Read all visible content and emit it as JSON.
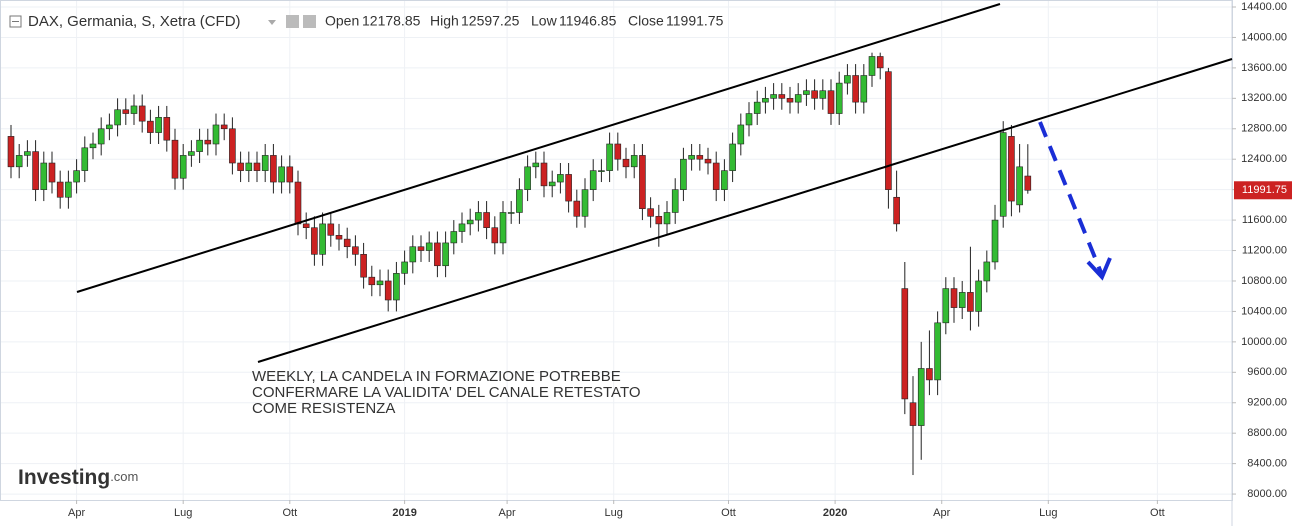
{
  "chart_data": {
    "type": "candlestick",
    "title": "DAX, Germania, S, Xetra (CFD)",
    "ohlc_labels": [
      "Open",
      "High",
      "Low",
      "Close"
    ],
    "annotation": [
      "WEEKLY, LA CANDELA IN FORMAZIONE POTREBBE",
      "CONFERMARE LA VALIDITA' DEL CANALE RETESTATO",
      "COME RESISTENZA"
    ],
    "branding": [
      "Investing",
      ".com"
    ],
    "up_color": "#33bb33",
    "down_color": "#cc2222",
    "grid": true,
    "open": [
      12700,
      12300,
      12450,
      12500,
      12000,
      12350,
      12100,
      11900,
      12100,
      12250,
      12550,
      12600,
      12800,
      12850,
      13050,
      13000,
      13100,
      12900,
      12750,
      12950,
      12650,
      12150,
      12450,
      12500,
      12650,
      12600,
      12850,
      12800,
      12350,
      12250,
      12350,
      12250,
      12450,
      12100,
      12300,
      12100,
      11550,
      11500,
      11150,
      11550,
      11400,
      11350,
      11250,
      11150,
      10850,
      10750,
      10800,
      10550,
      10900,
      11050,
      11250,
      11200,
      11300,
      11000,
      11300,
      11450,
      11550,
      11600,
      11700,
      11500,
      11300,
      11700,
      11700,
      12000,
      12300,
      12350,
      12050,
      12100,
      12200,
      11850,
      11650,
      12000,
      12250,
      12250,
      12600,
      12400,
      12300,
      12450,
      11750,
      11650,
      11550,
      11700,
      12000,
      12400,
      12450,
      12400,
      12350,
      12000,
      12250,
      12600,
      12850,
      13000,
      13150,
      13200,
      13250,
      13200,
      13150,
      13250,
      13300,
      13200,
      13300,
      13000,
      13400,
      13500,
      13150,
      13500,
      13750,
      13550,
      11900,
      10700,
      9200,
      8900,
      9650,
      9500,
      10250,
      10700,
      10450,
      10650,
      10400,
      10800,
      11050,
      11650,
      12700,
      11800,
      12178.85
    ],
    "high": [
      12850,
      12600,
      12650,
      12650,
      12500,
      12500,
      12250,
      12250,
      12400,
      12700,
      12750,
      12950,
      13000,
      13200,
      13200,
      13250,
      13250,
      13050,
      13100,
      13100,
      12800,
      12600,
      12650,
      12800,
      12800,
      13000,
      13000,
      12950,
      12500,
      12500,
      12500,
      12600,
      12600,
      12450,
      12450,
      12250,
      11700,
      11650,
      11700,
      11700,
      11550,
      11500,
      11400,
      11300,
      11000,
      10950,
      10950,
      11050,
      11200,
      11400,
      11400,
      11450,
      11450,
      11450,
      11600,
      11700,
      11750,
      11850,
      11850,
      11650,
      11850,
      11850,
      12150,
      12450,
      12500,
      12500,
      12250,
      12350,
      12350,
      12000,
      12150,
      12400,
      12400,
      12750,
      12750,
      12550,
      12600,
      12600,
      11900,
      11800,
      11850,
      12150,
      12550,
      12600,
      12600,
      12550,
      12500,
      12400,
      12750,
      13000,
      13150,
      13300,
      13350,
      13400,
      13400,
      13350,
      13400,
      13450,
      13450,
      13450,
      13450,
      13550,
      13650,
      13650,
      13650,
      13800,
      13800,
      13600,
      12250,
      11050,
      9550,
      10000,
      10150,
      10400,
      10850,
      10850,
      10800,
      11250,
      10950,
      11200,
      11800,
      12900,
      12850,
      12600,
      12597.25
    ],
    "low": [
      12150,
      12150,
      12300,
      11850,
      11850,
      11950,
      11750,
      11750,
      11950,
      12100,
      12400,
      12450,
      12650,
      12700,
      12850,
      12850,
      12750,
      12600,
      12600,
      12500,
      12000,
      12000,
      12300,
      12350,
      12450,
      12450,
      12650,
      12200,
      12100,
      12100,
      12100,
      12100,
      11950,
      11950,
      11950,
      11400,
      11350,
      11000,
      11000,
      11250,
      11200,
      11100,
      11000,
      10700,
      10600,
      10600,
      10400,
      10400,
      10750,
      10900,
      11050,
      11050,
      10850,
      10850,
      11150,
      11300,
      11400,
      11450,
      11350,
      11150,
      11150,
      11550,
      11550,
      11850,
      12150,
      11900,
      11900,
      11950,
      11700,
      11500,
      11500,
      11850,
      12100,
      12100,
      12250,
      12150,
      12150,
      11600,
      11500,
      11250,
      11400,
      11550,
      11850,
      12250,
      12250,
      12200,
      11850,
      11850,
      12100,
      12450,
      12700,
      12850,
      13000,
      13050,
      13050,
      13000,
      13000,
      13100,
      13050,
      13050,
      12850,
      12850,
      13250,
      13000,
      13000,
      13350,
      13450,
      11750,
      11450,
      9050,
      8250,
      8450,
      9300,
      9300,
      10100,
      10250,
      10300,
      10150,
      10200,
      10650,
      10950,
      11500,
      11650,
      11700,
      11946.85
    ],
    "close": [
      12300,
      12450,
      12500,
      12000,
      12350,
      12100,
      11900,
      12100,
      12250,
      12550,
      12600,
      12800,
      12850,
      13050,
      13000,
      13100,
      12900,
      12750,
      12950,
      12650,
      12150,
      12450,
      12500,
      12650,
      12600,
      12850,
      12800,
      12350,
      12250,
      12350,
      12250,
      12450,
      12100,
      12300,
      12100,
      11550,
      11500,
      11150,
      11550,
      11400,
      11350,
      11250,
      11150,
      10850,
      10750,
      10800,
      10550,
      10900,
      11050,
      11250,
      11200,
      11300,
      11000,
      11300,
      11450,
      11550,
      11600,
      11700,
      11500,
      11300,
      11700,
      11700,
      12000,
      12300,
      12350,
      12050,
      12100,
      12200,
      11850,
      11650,
      12000,
      12250,
      12250,
      12600,
      12400,
      12300,
      12450,
      11750,
      11650,
      11550,
      11700,
      12000,
      12400,
      12450,
      12400,
      12350,
      12000,
      12250,
      12600,
      12850,
      13000,
      13150,
      13200,
      13250,
      13200,
      13150,
      13250,
      13300,
      13200,
      13300,
      13000,
      13400,
      13500,
      13150,
      13500,
      13750,
      13600,
      12000,
      11550,
      9250,
      8900,
      9650,
      9500,
      10250,
      10700,
      10450,
      10650,
      10400,
      10800,
      11050,
      11600,
      12750,
      11850,
      12300,
      11991.75
    ],
    "ylim": [
      7922,
      14492
    ],
    "yticks": [
      {
        "value": 8000,
        "label": "8000.00"
      },
      {
        "value": 8400,
        "label": "8400.00"
      },
      {
        "value": 8800,
        "label": "8800.00"
      },
      {
        "value": 9200,
        "label": "9200.00"
      },
      {
        "value": 9600,
        "label": "9600.00"
      },
      {
        "value": 10000,
        "label": "10000.00"
      },
      {
        "value": 10400,
        "label": "10400.00"
      },
      {
        "value": 10800,
        "label": "10800.00"
      },
      {
        "value": 11200,
        "label": "11200.00"
      },
      {
        "value": 11600,
        "label": "11600.00"
      },
      {
        "value": 12000,
        "label": "12000.00"
      },
      {
        "value": 12400,
        "label": "12400.00"
      },
      {
        "value": 12800,
        "label": "12800.00"
      },
      {
        "value": 13200,
        "label": "13200.00"
      },
      {
        "value": 13600,
        "label": "13600.00"
      },
      {
        "value": 14000,
        "label": "14000.00"
      },
      {
        "value": 14400,
        "label": "14400.00"
      }
    ],
    "xlim": [
      -1.34,
      148.9
    ],
    "xticks": [
      {
        "value": 8,
        "label": "Apr"
      },
      {
        "value": 21,
        "label": "Lug"
      },
      {
        "value": 34,
        "label": "Ott"
      },
      {
        "value": 48,
        "label": "2019"
      },
      {
        "value": 60.5,
        "label": "Apr"
      },
      {
        "value": 73.5,
        "label": "Lug"
      },
      {
        "value": 87.5,
        "label": "Ott"
      },
      {
        "value": 100.5,
        "label": "2020"
      },
      {
        "value": 113.5,
        "label": "Apr"
      },
      {
        "value": 126.5,
        "label": "Lug"
      },
      {
        "value": 139.8,
        "label": "Ott"
      }
    ]
  }
}
